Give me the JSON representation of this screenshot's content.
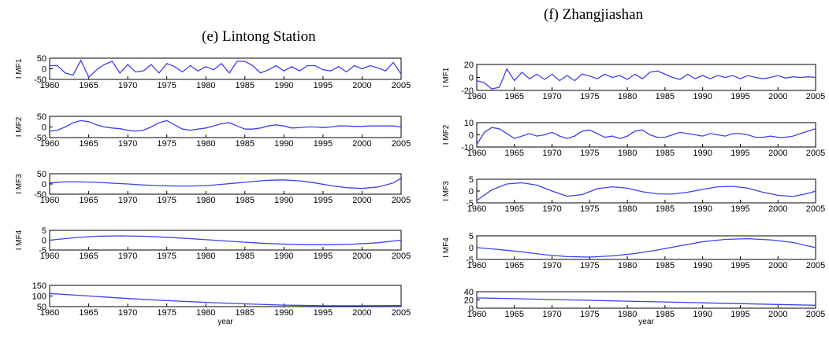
{
  "chart_data": [
    {
      "id": "e",
      "type": "line",
      "title": "(e) Lintong Station",
      "xlabel": "year",
      "xlim": [
        1960,
        2005
      ],
      "xticks": [
        1960,
        1965,
        1970,
        1975,
        1980,
        1985,
        1990,
        1995,
        2000,
        2005
      ],
      "color": "#3f3ff0",
      "panels": [
        {
          "ylabel": "I MF1",
          "ylim": [
            -50,
            50
          ],
          "yticks": [
            -50,
            0,
            50
          ],
          "x": [
            1960,
            1961,
            1962,
            1963,
            1964,
            1965,
            1966,
            1967,
            1968,
            1969,
            1970,
            1971,
            1972,
            1973,
            1974,
            1975,
            1976,
            1977,
            1978,
            1979,
            1980,
            1981,
            1982,
            1983,
            1984,
            1985,
            1986,
            1987,
            1988,
            1989,
            1990,
            1991,
            1992,
            1993,
            1994,
            1995,
            1996,
            1997,
            1998,
            1999,
            2000,
            2001,
            2002,
            2003,
            2004,
            2005
          ],
          "y": [
            15,
            15,
            -20,
            -30,
            40,
            -40,
            -5,
            20,
            35,
            -20,
            20,
            -15,
            -10,
            20,
            -20,
            25,
            10,
            -15,
            15,
            -10,
            10,
            -5,
            25,
            -20,
            35,
            35,
            15,
            -20,
            -5,
            15,
            -10,
            10,
            -10,
            15,
            15,
            -5,
            -10,
            10,
            -15,
            15,
            0,
            15,
            5,
            -10,
            30,
            -25
          ]
        },
        {
          "ylabel": "I MF2",
          "ylim": [
            -50,
            50
          ],
          "yticks": [
            -50,
            0,
            50
          ],
          "x": [
            1960,
            1961,
            1962,
            1963,
            1964,
            1965,
            1966,
            1967,
            1968,
            1969,
            1970,
            1971,
            1972,
            1973,
            1974,
            1975,
            1976,
            1977,
            1978,
            1979,
            1980,
            1981,
            1982,
            1983,
            1984,
            1985,
            1986,
            1987,
            1988,
            1989,
            1990,
            1991,
            1992,
            1993,
            1994,
            1995,
            1996,
            1997,
            1998,
            1999,
            2000,
            2001,
            2002,
            2003,
            2004,
            2005
          ],
          "y": [
            -20,
            -15,
            0,
            20,
            30,
            25,
            10,
            0,
            -5,
            -8,
            -15,
            -20,
            -15,
            0,
            20,
            30,
            10,
            -10,
            -15,
            -10,
            -5,
            5,
            15,
            20,
            5,
            -10,
            -10,
            -5,
            5,
            10,
            5,
            -5,
            -3,
            0,
            0,
            -3,
            0,
            5,
            5,
            3,
            3,
            5,
            5,
            5,
            5,
            0
          ]
        },
        {
          "ylabel": "I MF3",
          "ylim": [
            -50,
            50
          ],
          "yticks": [
            -50,
            0,
            50
          ],
          "x": [
            1960,
            1962,
            1964,
            1966,
            1968,
            1970,
            1972,
            1974,
            1976,
            1978,
            1980,
            1982,
            1984,
            1986,
            1988,
            1990,
            1992,
            1994,
            1996,
            1998,
            2000,
            2002,
            2004,
            2005
          ],
          "y": [
            5,
            10,
            10,
            8,
            4,
            0,
            -5,
            -8,
            -10,
            -10,
            -8,
            -2,
            5,
            12,
            18,
            20,
            15,
            5,
            -8,
            -18,
            -22,
            -15,
            5,
            28
          ]
        },
        {
          "ylabel": "I MF4",
          "ylim": [
            -5,
            5
          ],
          "yticks": [
            -5,
            0,
            5
          ],
          "x": [
            1960,
            1963,
            1966,
            1969,
            1972,
            1975,
            1978,
            1981,
            1984,
            1987,
            1990,
            1993,
            1996,
            1999,
            2002,
            2005
          ],
          "y": [
            0,
            1.2,
            2,
            2.2,
            2,
            1.5,
            0.8,
            0,
            -0.8,
            -1.5,
            -2,
            -2.3,
            -2.3,
            -2,
            -1.3,
            0
          ]
        },
        {
          "ylabel": "",
          "ylim": [
            50,
            150
          ],
          "yticks": [
            50,
            100,
            150
          ],
          "x": [
            1960,
            1965,
            1970,
            1975,
            1980,
            1985,
            1990,
            1995,
            2000,
            2005
          ],
          "y": [
            112,
            100,
            88,
            78,
            70,
            63,
            57,
            54,
            54,
            55
          ]
        }
      ]
    },
    {
      "id": "f",
      "type": "line",
      "title": "(f)           Zhangjiashan",
      "xlabel": "year",
      "xlim": [
        1960,
        2005
      ],
      "xticks": [
        1960,
        1965,
        1970,
        1975,
        1980,
        1985,
        1990,
        1995,
        2000,
        2005
      ],
      "color": "#3f3ff0",
      "panels": [
        {
          "ylabel": "I MF1",
          "ylim": [
            -20,
            20
          ],
          "yticks": [
            -20,
            0,
            20
          ],
          "x": [
            1960,
            1961,
            1962,
            1963,
            1964,
            1965,
            1966,
            1967,
            1968,
            1969,
            1970,
            1971,
            1972,
            1973,
            1974,
            1975,
            1976,
            1977,
            1978,
            1979,
            1980,
            1981,
            1982,
            1983,
            1984,
            1985,
            1986,
            1987,
            1988,
            1989,
            1990,
            1991,
            1992,
            1993,
            1994,
            1995,
            1996,
            1997,
            1998,
            1999,
            2000,
            2001,
            2002,
            2003,
            2004,
            2005
          ],
          "y": [
            -5,
            -8,
            -18,
            -15,
            13,
            -5,
            8,
            -2,
            5,
            -3,
            5,
            -5,
            3,
            -5,
            5,
            2,
            -2,
            5,
            0,
            3,
            -3,
            5,
            -2,
            8,
            10,
            5,
            0,
            -3,
            5,
            -2,
            3,
            -2,
            3,
            0,
            3,
            -2,
            3,
            0,
            -2,
            0,
            3,
            -1,
            1,
            0,
            1,
            0
          ]
        },
        {
          "ylabel": "I MF2",
          "ylim": [
            -10,
            10
          ],
          "yticks": [
            -10,
            0,
            10
          ],
          "x": [
            1960,
            1961,
            1962,
            1963,
            1964,
            1965,
            1966,
            1967,
            1968,
            1969,
            1970,
            1971,
            1972,
            1973,
            1974,
            1975,
            1976,
            1977,
            1978,
            1979,
            1980,
            1981,
            1982,
            1983,
            1984,
            1985,
            1986,
            1987,
            1988,
            1989,
            1990,
            1991,
            1992,
            1993,
            1994,
            1995,
            1996,
            1997,
            1998,
            1999,
            2000,
            2001,
            2002,
            2003,
            2004,
            2005
          ],
          "y": [
            -8,
            2,
            6,
            5,
            1,
            -3,
            -1,
            1,
            -1,
            0,
            2,
            -1,
            -3,
            -1,
            3,
            4,
            1,
            -2,
            -1,
            -3,
            -1,
            3,
            4,
            0,
            -2,
            -2,
            0,
            2,
            1,
            0,
            -1,
            1,
            0,
            -1,
            1,
            1,
            0,
            -2,
            -2,
            -1,
            -2,
            -2,
            -1,
            1,
            3,
            5
          ]
        },
        {
          "ylabel": "I MF3",
          "ylim": [
            -5,
            5
          ],
          "yticks": [
            -5,
            0,
            5
          ],
          "x": [
            1960,
            1962,
            1964,
            1966,
            1968,
            1970,
            1972,
            1974,
            1976,
            1978,
            1980,
            1982,
            1984,
            1986,
            1988,
            1990,
            1992,
            1994,
            1996,
            1998,
            2000,
            2002,
            2004,
            2005
          ],
          "y": [
            -4,
            0.5,
            3,
            3.5,
            2.5,
            0,
            -2.2,
            -1.5,
            1,
            1.8,
            1.2,
            -0.3,
            -1.2,
            -1.3,
            -0.5,
            0.7,
            1.8,
            2,
            1.2,
            -0.5,
            -1.8,
            -2.3,
            -1,
            0
          ]
        },
        {
          "ylabel": "I MF4",
          "ylim": [
            -5,
            5
          ],
          "yticks": [
            -5,
            0,
            5
          ],
          "x": [
            1960,
            1963,
            1966,
            1969,
            1972,
            1975,
            1978,
            1981,
            1984,
            1987,
            1990,
            1993,
            1996,
            1999,
            2002,
            2005
          ],
          "y": [
            0,
            -0.8,
            -1.8,
            -3,
            -3.8,
            -4,
            -3.5,
            -2.5,
            -1,
            0.8,
            2.5,
            3.5,
            3.8,
            3.3,
            2.2,
            0
          ]
        },
        {
          "ylabel": "",
          "ylim": [
            0,
            40
          ],
          "yticks": [
            0,
            20,
            40
          ],
          "x": [
            1960,
            1965,
            1970,
            1975,
            1980,
            1985,
            1990,
            1995,
            2000,
            2005
          ],
          "y": [
            25,
            23,
            21,
            19,
            17,
            15,
            13,
            11,
            9,
            7
          ]
        }
      ]
    }
  ]
}
